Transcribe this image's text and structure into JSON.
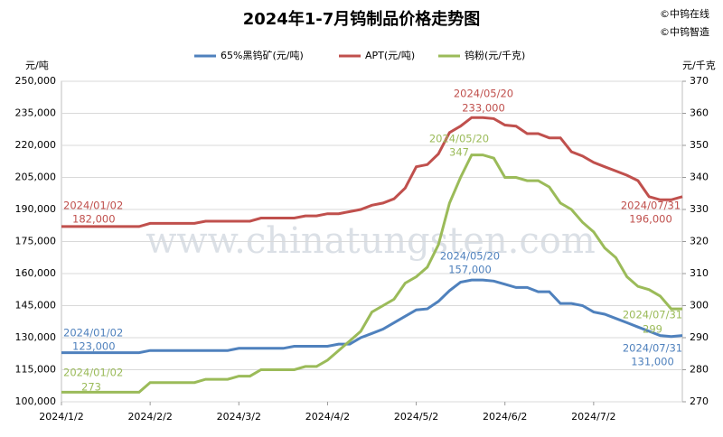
{
  "chart_data": {
    "type": "line",
    "title": "2024年1-7月钨制品价格走势图",
    "credits": [
      "©中钨在线",
      "©中钨智造"
    ],
    "watermark": "www.chinatungsten.com",
    "y_unit": "元/吨",
    "y2_unit": "元/千克",
    "categories": [
      "2024/1/2",
      null,
      null,
      null,
      null,
      null,
      null,
      null,
      "2024/2/2",
      null,
      null,
      null,
      null,
      null,
      null,
      null,
      "2024/3/2",
      null,
      null,
      null,
      null,
      null,
      null,
      null,
      "2024/4/2",
      null,
      null,
      null,
      null,
      null,
      null,
      null,
      "2024/5/2",
      null,
      null,
      null,
      null,
      null,
      null,
      null,
      "2024/6/2",
      null,
      null,
      null,
      null,
      null,
      null,
      null,
      "2024/7/2",
      null,
      null,
      null,
      null,
      null,
      null,
      null,
      null
    ],
    "ylim": [
      100000,
      250000
    ],
    "yticks": [
      {
        "value": 100000,
        "label": "100,000"
      },
      {
        "value": 115000,
        "label": "115,000"
      },
      {
        "value": 130000,
        "label": "130,000"
      },
      {
        "value": 145000,
        "label": "145,000"
      },
      {
        "value": 160000,
        "label": "160,000"
      },
      {
        "value": 175000,
        "label": "175,000"
      },
      {
        "value": 190000,
        "label": "190,000"
      },
      {
        "value": 205000,
        "label": "205,000"
      },
      {
        "value": 220000,
        "label": "220,000"
      },
      {
        "value": 235000,
        "label": "235,000"
      },
      {
        "value": 250000,
        "label": "250,000"
      }
    ],
    "y2lim": [
      270,
      370
    ],
    "y2ticks": [
      270,
      280,
      290,
      300,
      310,
      320,
      330,
      340,
      350,
      360,
      370
    ],
    "grid": true,
    "series": [
      {
        "name": "65%黑钨矿(元/吨)",
        "color": "#4f81bd",
        "values": [
          123000,
          123000,
          123000,
          123000,
          123000,
          123000,
          123000,
          123000,
          124000,
          124000,
          124000,
          124000,
          124000,
          124000,
          124000,
          124000,
          125000,
          125000,
          125000,
          125000,
          125000,
          126000,
          126000,
          126000,
          126000,
          127000,
          127000,
          130000,
          132000,
          134000,
          137000,
          140000,
          143000,
          143500,
          147000,
          152000,
          156000,
          157000,
          157000,
          156500,
          155000,
          153500,
          153500,
          151500,
          151500,
          146000,
          146000,
          145000,
          142000,
          141000,
          139000,
          137000,
          135000,
          133000,
          131000,
          130500,
          131000
        ]
      },
      {
        "name": "APT(元/吨)",
        "color": "#c0504d",
        "values": [
          182000,
          182000,
          182000,
          182000,
          182000,
          182000,
          182000,
          182000,
          183500,
          183500,
          183500,
          183500,
          183500,
          184500,
          184500,
          184500,
          184500,
          184500,
          186000,
          186000,
          186000,
          186000,
          187000,
          187000,
          188000,
          188000,
          189000,
          190000,
          192000,
          193000,
          195000,
          200000,
          210000,
          211000,
          216000,
          226000,
          229000,
          233000,
          233000,
          232500,
          229500,
          229000,
          225500,
          225500,
          223500,
          223500,
          217000,
          215000,
          212000,
          210000,
          208000,
          206000,
          203500,
          196000,
          194500,
          194500,
          196000
        ]
      },
      {
        "name": "钨粉(元/千克)",
        "color": "#9bbb59",
        "axis": "y2",
        "values": [
          273,
          273,
          273,
          273,
          273,
          273,
          273,
          273,
          276,
          276,
          276,
          276,
          276,
          277,
          277,
          277,
          278,
          278,
          280,
          280,
          280,
          280,
          281,
          281,
          283,
          286,
          289,
          292,
          298,
          300,
          302,
          307,
          309,
          312,
          319,
          332,
          340,
          347,
          347,
          346,
          340,
          340,
          339,
          339,
          337,
          332,
          330,
          326,
          323,
          318,
          315,
          309,
          306,
          305,
          303,
          299,
          299
        ]
      }
    ],
    "annotations": [
      "2024/01/02",
      "182,000",
      "2024/05/20",
      "233,000",
      "2024/07/31",
      "196,000",
      "2024/01/02",
      "123,000",
      "2024/05/20",
      "157,000",
      "2024/07/31",
      "131,000",
      "2024/01/02",
      "273",
      "2024/05/20",
      "347",
      "2024/07/31",
      "299"
    ]
  }
}
